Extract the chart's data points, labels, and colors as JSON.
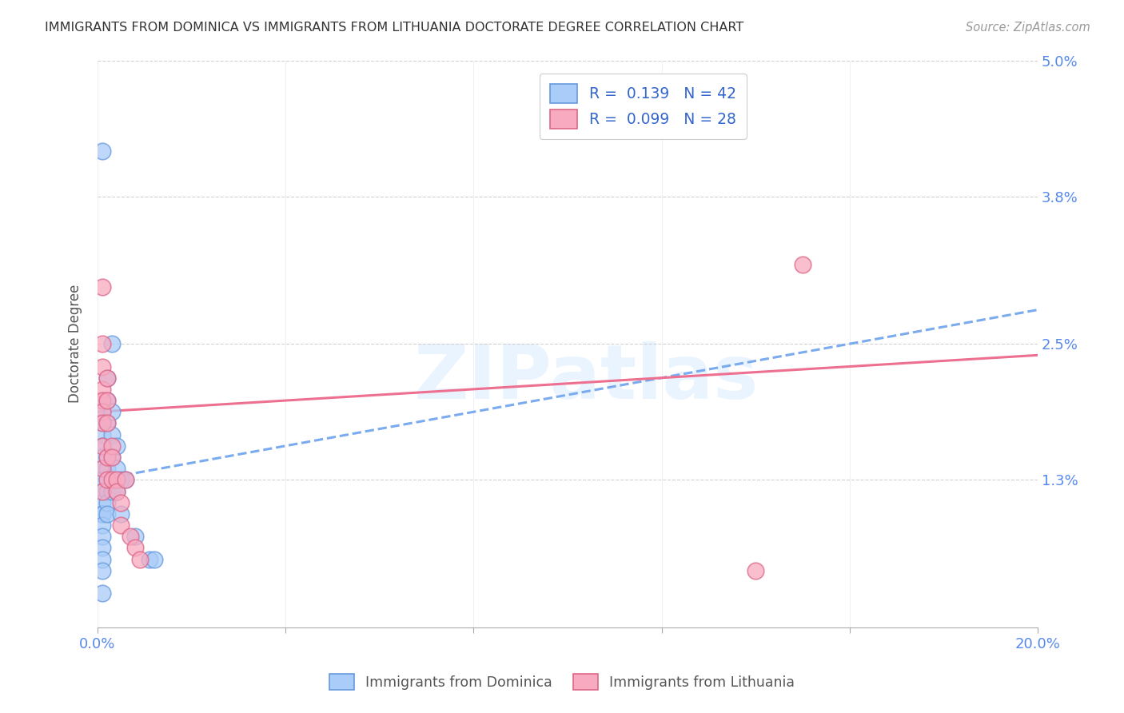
{
  "title": "IMMIGRANTS FROM DOMINICA VS IMMIGRANTS FROM LITHUANIA DOCTORATE DEGREE CORRELATION CHART",
  "source": "Source: ZipAtlas.com",
  "ylabel": "Doctorate Degree",
  "xlim": [
    0.0,
    0.2
  ],
  "ylim": [
    0.0,
    0.05
  ],
  "ytick_vals": [
    0.013,
    0.025,
    0.038,
    0.05
  ],
  "ytick_labels": [
    "1.3%",
    "2.5%",
    "3.8%",
    "5.0%"
  ],
  "dominica_color": "#aaccf8",
  "lithuania_color": "#f8aac0",
  "dominica_edge": "#6699dd",
  "lithuania_edge": "#dd6688",
  "trend_dominica_color": "#7aabee",
  "trend_lithuania_color": "#ee7090",
  "background_color": "#ffffff",
  "grid_color": "#cccccc",
  "title_color": "#333333",
  "axis_label_color": "#5588ee",
  "dom_trend_y0": 0.013,
  "dom_trend_y1": 0.028,
  "lit_trend_y0": 0.019,
  "lit_trend_y1": 0.024,
  "dominica_x": [
    0.001,
    0.001,
    0.001,
    0.001,
    0.001,
    0.001,
    0.001,
    0.001,
    0.001,
    0.001,
    0.001,
    0.001,
    0.001,
    0.001,
    0.001,
    0.001,
    0.001,
    0.001,
    0.001,
    0.001,
    0.002,
    0.002,
    0.002,
    0.002,
    0.002,
    0.002,
    0.002,
    0.002,
    0.003,
    0.003,
    0.003,
    0.003,
    0.003,
    0.004,
    0.004,
    0.004,
    0.005,
    0.005,
    0.006,
    0.008,
    0.011,
    0.012
  ],
  "dominica_y": [
    0.042,
    0.02,
    0.019,
    0.018,
    0.017,
    0.016,
    0.015,
    0.014,
    0.013,
    0.013,
    0.012,
    0.011,
    0.01,
    0.01,
    0.009,
    0.008,
    0.007,
    0.006,
    0.005,
    0.003,
    0.022,
    0.02,
    0.018,
    0.015,
    0.014,
    0.012,
    0.011,
    0.01,
    0.025,
    0.019,
    0.017,
    0.015,
    0.012,
    0.016,
    0.014,
    0.012,
    0.013,
    0.01,
    0.013,
    0.008,
    0.006,
    0.006
  ],
  "lithuania_x": [
    0.001,
    0.001,
    0.001,
    0.001,
    0.001,
    0.001,
    0.001,
    0.001,
    0.001,
    0.001,
    0.002,
    0.002,
    0.002,
    0.002,
    0.002,
    0.003,
    0.003,
    0.003,
    0.004,
    0.004,
    0.005,
    0.005,
    0.006,
    0.007,
    0.008,
    0.009,
    0.14,
    0.15
  ],
  "lithuania_y": [
    0.03,
    0.025,
    0.023,
    0.021,
    0.02,
    0.019,
    0.018,
    0.016,
    0.014,
    0.012,
    0.022,
    0.02,
    0.018,
    0.015,
    0.013,
    0.016,
    0.015,
    0.013,
    0.013,
    0.012,
    0.011,
    0.009,
    0.013,
    0.008,
    0.007,
    0.006,
    0.005,
    0.032
  ]
}
